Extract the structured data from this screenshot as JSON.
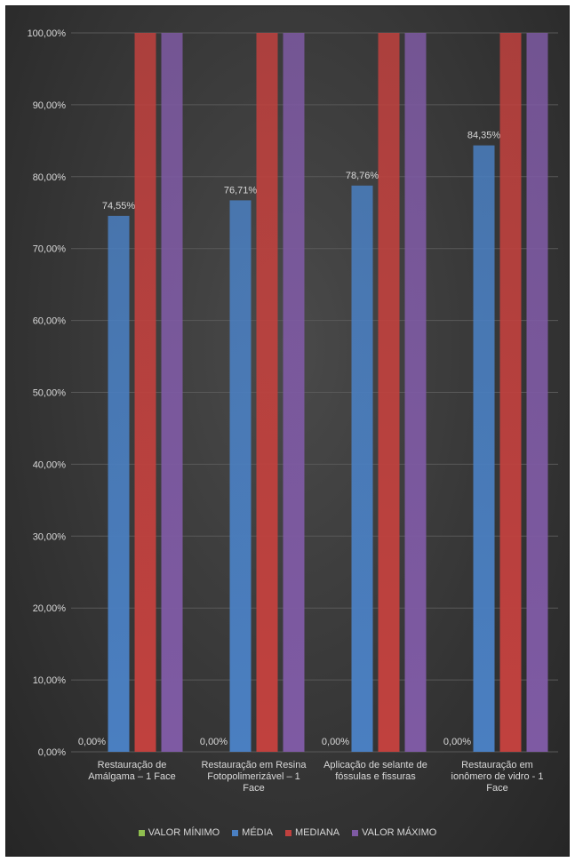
{
  "chart_data": {
    "type": "bar",
    "categories": [
      [
        "Restauração de",
        "Amálgama – 1 Face"
      ],
      [
        "Restauração em Resina",
        "Fotopolimerizável – 1",
        "Face"
      ],
      [
        "Aplicação de selante de",
        "fóssulas e fissuras"
      ],
      [
        "Restauração em",
        "ionômero de vidro - 1",
        "Face"
      ]
    ],
    "series": [
      {
        "name": "VALOR MÍNIMO",
        "color": "#8fbe4f",
        "values": [
          0,
          0,
          0,
          0
        ],
        "labels": [
          "0,00%",
          "0,00%",
          "0,00%",
          "0,00%"
        ]
      },
      {
        "name": "MÉDIA",
        "color": "#4a7fc1",
        "values": [
          74.55,
          76.71,
          78.76,
          84.35
        ],
        "labels": [
          "74,55%",
          "76,71%",
          "78,76%",
          "84,35%"
        ]
      },
      {
        "name": "MEDIANA",
        "color": "#c0413e",
        "values": [
          100,
          100,
          100,
          100
        ],
        "labels": []
      },
      {
        "name": "VALOR MÁXIMO",
        "color": "#7e5aa3",
        "values": [
          100,
          100,
          100,
          100
        ],
        "labels": []
      }
    ],
    "yticks": [
      "0,00%",
      "10,00%",
      "20,00%",
      "30,00%",
      "40,00%",
      "50,00%",
      "60,00%",
      "70,00%",
      "80,00%",
      "90,00%",
      "100,00%"
    ],
    "ylim": [
      0,
      100
    ],
    "grid": true,
    "legend": "bottom"
  }
}
